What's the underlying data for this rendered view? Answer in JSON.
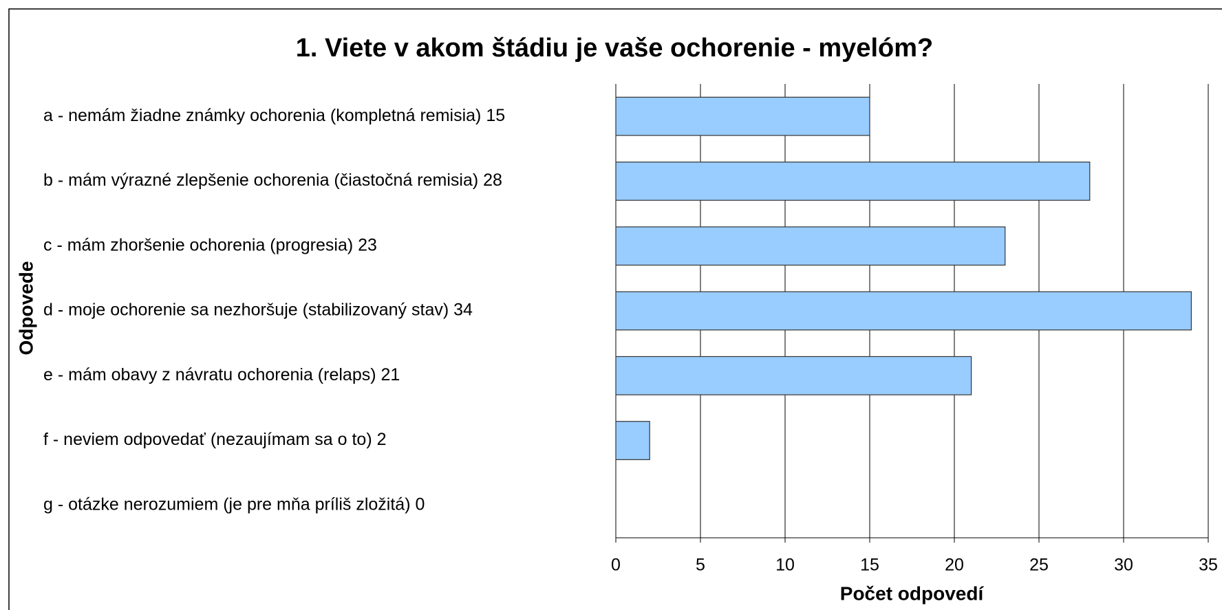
{
  "chart_data": {
    "type": "barh",
    "title": "1. Viete v akom štádiu je vaše ochorenie - myelóm?",
    "x_label": "Počet odpovedí",
    "y_label": "Odpovede",
    "categories": [
      "a - nemám žiadne známky ochorenia (kompletná remisia) 15",
      "b -  mám výrazné zlepšenie ochorenia (čiastočná remisia) 28",
      "c - mám zhoršenie ochorenia (progresia) 23",
      "d -  moje ochorenie sa nezhoršuje (stabilizovaný stav) 34",
      "e - mám obavy z návratu ochorenia (relaps) 21",
      "f - neviem odpovedať (nezaujímam sa o to) 2",
      "g  - otázke nerozumiem (je pre mňa príliš zložitá) 0"
    ],
    "values": [
      15,
      28,
      23,
      34,
      21,
      2,
      0
    ],
    "color": "#99ccff",
    "xlim": [
      0,
      35
    ],
    "xticks": [
      0,
      5,
      10,
      15,
      20,
      25,
      30,
      35
    ],
    "grid": true
  }
}
